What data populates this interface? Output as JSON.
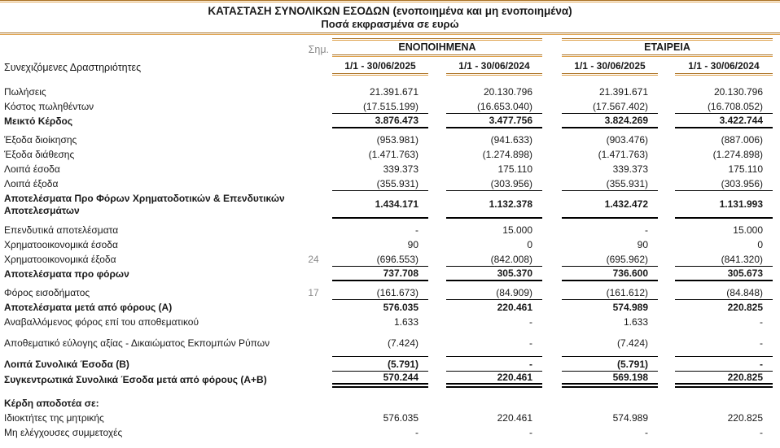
{
  "title": "ΚΑΤΑΣΤΑΣΗ ΣΥΝΟΛΙΚΩΝ ΕΣΟΔΩΝ (ενοποιημένα και μη ενοποιημένα)",
  "subtitle": "Ποσά εκφρασμένα σε ευρώ",
  "colors": {
    "accent_rule_orange_dark": "#a96e1e",
    "accent_rule_orange_light": "#dfa24d",
    "note_gray": "#8a8a8a",
    "text": "#191919"
  },
  "header": {
    "note_label": "Σημ.",
    "groups": [
      {
        "label": "ΕΝΟΠΟΙΗΜΕΝΑ"
      },
      {
        "label": "ΕΤΑΙΡΕΙΑ"
      }
    ],
    "periods": [
      "1/1 - 30/06/2025",
      "1/1 - 30/06/2024",
      "1/1 - 30/06/2025",
      "1/1 - 30/06/2024"
    ],
    "section_label": "Συνεχιζόμενες Δραστηριότητες"
  },
  "table": {
    "rows": [
      {
        "label": "Πωλήσεις",
        "note": "",
        "values": [
          "21.391.671",
          "20.130.796",
          "21.391.671",
          "20.130.796"
        ],
        "bold": false,
        "rule_below": "none",
        "tall": false,
        "gap": ""
      },
      {
        "label": "Κόστος πωληθέντων",
        "note": "",
        "values": [
          "(17.515.199)",
          "(16.653.040)",
          "(17.567.402)",
          "(16.708.052)"
        ],
        "bold": false,
        "rule_below": "thin",
        "tall": false,
        "gap": ""
      },
      {
        "label": "Μεικτό Κέρδος",
        "note": "",
        "values": [
          "3.876.473",
          "3.477.756",
          "3.824.269",
          "3.422.744"
        ],
        "bold": true,
        "rule_below": "thick",
        "tall": false,
        "gap": ""
      },
      {
        "label": "Έξοδα διοίκησης",
        "note": "",
        "values": [
          "(953.981)",
          "(941.633)",
          "(903.476)",
          "(887.006)"
        ],
        "bold": false,
        "rule_below": "none",
        "tall": false,
        "gap": "sm"
      },
      {
        "label": "Έξοδα διάθεσης",
        "note": "",
        "values": [
          "(1.471.763)",
          "(1.274.898)",
          "(1.471.763)",
          "(1.274.898)"
        ],
        "bold": false,
        "rule_below": "none",
        "tall": false,
        "gap": ""
      },
      {
        "label": "Λοιπά έσοδα",
        "note": "",
        "values": [
          "339.373",
          "175.110",
          "339.373",
          "175.110"
        ],
        "bold": false,
        "rule_below": "none",
        "tall": false,
        "gap": ""
      },
      {
        "label": "Λοιπά έξοδα",
        "note": "",
        "values": [
          "(355.931)",
          "(303.956)",
          "(355.931)",
          "(303.956)"
        ],
        "bold": false,
        "rule_below": "thin",
        "tall": false,
        "gap": ""
      },
      {
        "label": "Αποτελέσματα Προ Φόρων  Χρηματοδοτικών & Επενδυτικών Αποτελεσμάτων",
        "note": "",
        "values": [
          "1.434.171",
          "1.132.378",
          "1.432.472",
          "1.131.993"
        ],
        "bold": true,
        "rule_below": "thick",
        "tall": true,
        "gap": ""
      },
      {
        "label": "Επενδυτικά αποτελέσματα",
        "note": "",
        "values": [
          "-",
          "15.000",
          "-",
          "15.000"
        ],
        "bold": false,
        "rule_below": "none",
        "tall": false,
        "gap": "sm"
      },
      {
        "label": "Χρηματοοικονομικά έσοδα",
        "note": "",
        "values": [
          "90",
          "0",
          "90",
          "0"
        ],
        "bold": false,
        "rule_below": "none",
        "tall": false,
        "gap": ""
      },
      {
        "label": "Χρηματοοικονομικά έξοδα",
        "note": "24",
        "values": [
          "(696.553)",
          "(842.008)",
          "(695.962)",
          "(841.320)"
        ],
        "bold": false,
        "rule_below": "thin",
        "tall": false,
        "gap": ""
      },
      {
        "label": "Αποτελέσματα  προ φόρων",
        "note": "",
        "values": [
          "737.708",
          "305.370",
          "736.600",
          "305.673"
        ],
        "bold": true,
        "rule_below": "thick",
        "tall": false,
        "gap": ""
      },
      {
        "label": "Φόρος εισοδήματος",
        "note": "17",
        "values": [
          "(161.673)",
          "(84.909)",
          "(161.612)",
          "(84.848)"
        ],
        "bold": false,
        "rule_below": "thin",
        "tall": false,
        "gap": "sm"
      },
      {
        "label": "Αποτελέσματα μετά από  φόρους (Α)",
        "note": "",
        "values": [
          "576.035",
          "220.461",
          "574.989",
          "220.825"
        ],
        "bold": true,
        "rule_below": "none",
        "tall": false,
        "gap": ""
      },
      {
        "label": "Αναβαλλόμενος φόρος επί του αποθεματικού",
        "note": "",
        "values": [
          "1.633",
          "-",
          "1.633",
          "-"
        ],
        "bold": false,
        "rule_below": "none",
        "tall": false,
        "gap": ""
      },
      {
        "label": "Αποθεματικό εύλογης αξίας - Δικαιώματος Εκπομπών Ρύπων",
        "note": "",
        "values": [
          "(7.424)",
          "-",
          "(7.424)",
          "-"
        ],
        "bold": false,
        "rule_below": "thin",
        "tall": true,
        "gap": ""
      },
      {
        "label": "Λοιπά Συνολικά Έσοδα (Β)",
        "note": "",
        "values": [
          "(5.791)",
          "-",
          "(5.791)",
          "-"
        ],
        "bold": true,
        "rule_below": "thin",
        "tall": false,
        "gap": ""
      },
      {
        "label": "Συγκεντρωτικά Συνολικά Έσοδα μετά από φόρους (Α+Β)",
        "note": "",
        "values": [
          "570.244",
          "220.461",
          "569.198",
          "220.825"
        ],
        "bold": true,
        "rule_below": "double",
        "tall": false,
        "gap": ""
      },
      {
        "label": "Κέρδη αποδοτέα σε:",
        "note": "",
        "values": [
          "",
          "",
          "",
          ""
        ],
        "bold": true,
        "rule_below": "none",
        "tall": false,
        "gap": "lg"
      },
      {
        "label": "Ιδιοκτήτες  της μητρικής",
        "note": "",
        "values": [
          "576.035",
          "220.461",
          "574.989",
          "220.825"
        ],
        "bold": false,
        "rule_below": "none",
        "tall": false,
        "gap": ""
      },
      {
        "label": "Μη ελέγχουσες συμμετοχές",
        "note": "",
        "values": [
          "-",
          "-",
          "-",
          "-"
        ],
        "bold": false,
        "rule_below": "none",
        "tall": false,
        "gap": ""
      }
    ]
  }
}
